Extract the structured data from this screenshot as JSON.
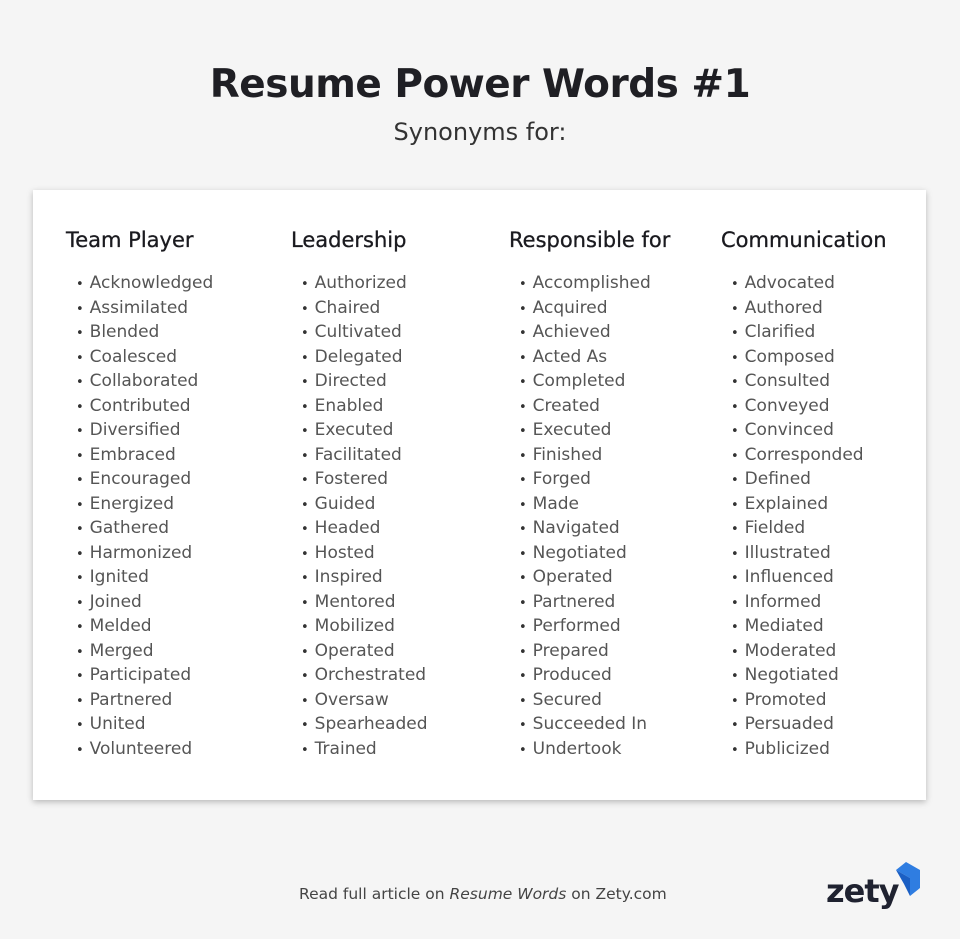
{
  "title": "Resume Power Words #1",
  "subtitle": "Synonyms for:",
  "columns": [
    {
      "heading": "Team Player",
      "items": [
        "Acknowledged",
        "Assimilated",
        "Blended",
        "Coalesced",
        "Collaborated",
        "Contributed",
        "Diversified",
        "Embraced",
        "Encouraged",
        "Energized",
        "Gathered",
        "Harmonized",
        "Ignited",
        "Joined",
        "Melded",
        "Merged",
        "Participated",
        "Partnered",
        "United",
        "Volunteered"
      ]
    },
    {
      "heading": "Leadership",
      "items": [
        "Authorized",
        "Chaired",
        "Cultivated",
        "Delegated",
        "Directed",
        "Enabled",
        "Executed",
        "Facilitated",
        "Fostered",
        "Guided",
        "Headed",
        "Hosted",
        "Inspired",
        "Mentored",
        "Mobilized",
        "Operated",
        "Orchestrated",
        "Oversaw",
        "Spearheaded",
        "Trained"
      ]
    },
    {
      "heading": "Responsible for",
      "items": [
        "Accomplished",
        "Acquired",
        "Achieved",
        "Acted As",
        "Completed",
        "Created",
        "Executed",
        "Finished",
        "Forged",
        "Made",
        "Navigated",
        "Negotiated",
        "Operated",
        "Partnered",
        "Performed",
        "Prepared",
        "Produced",
        "Secured",
        "Succeeded In",
        "Undertook"
      ]
    },
    {
      "heading": "Communication",
      "items": [
        "Advocated",
        "Authored",
        "Clarified",
        "Composed",
        "Consulted",
        "Conveyed",
        "Convinced",
        "Corresponded",
        "Defined",
        "Explained",
        "Fielded",
        "Illustrated",
        "Influenced",
        "Informed",
        "Mediated",
        "Moderated",
        "Negotiated",
        "Promoted",
        "Persuaded",
        "Publicized"
      ]
    }
  ],
  "footer": {
    "prefix": "Read full article on ",
    "link": "Resume Words",
    "suffix": " on Zety.com"
  },
  "logo": {
    "text": "zety",
    "accent": "#2f7de1"
  }
}
